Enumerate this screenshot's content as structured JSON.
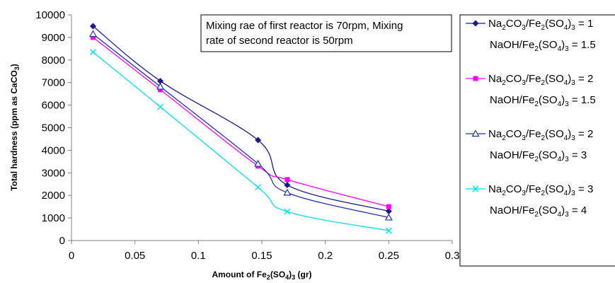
{
  "chart_data": {
    "type": "line",
    "xlabel": {
      "pre": "Amount of Fe",
      "sub1": "2",
      "mid": "(SO",
      "sub2": "4",
      "post": ")",
      "sub3": "3",
      "end": " (gr)"
    },
    "ylabel": {
      "pre": "Total hardness (ppm as CaCO",
      "sub": "3",
      "post": ")"
    },
    "xlim": [
      0,
      0.3
    ],
    "ylim": [
      0,
      10000
    ],
    "xticks": [
      "0",
      "0.05",
      "0.1",
      "0.15",
      "0.2",
      "0.25",
      "0.3"
    ],
    "yticks": [
      "0",
      "1000",
      "2000",
      "3000",
      "4000",
      "5000",
      "6000",
      "7000",
      "8000",
      "9000",
      "10000"
    ],
    "annotation": {
      "line1": "Mixing rae of first reactor is 70rpm, Mixing",
      "line2": "rate of second reactor is 50rpm"
    },
    "legend_position": "right",
    "series": [
      {
        "color": "#1a1a8c",
        "marker": "diamond",
        "legend_line1": {
          "a": "Na",
          "b": "2",
          "c": "CO",
          "d": "3",
          "e": "/Fe",
          "f": "2",
          "g": "(SO",
          "h": "4",
          "i": ")",
          "j": "3",
          "k": " = 1"
        },
        "legend_line2": {
          "a": "NaOH/Fe",
          "b": "2",
          "c": "(SO",
          "d": "4",
          "e": ")",
          "f": "3",
          "g": " = 1.5"
        },
        "x": [
          0.017,
          0.07,
          0.147,
          0.17,
          0.25
        ],
        "y": [
          9500,
          7070,
          4450,
          2460,
          1300
        ]
      },
      {
        "color": "#ff00ff",
        "marker": "square",
        "legend_line1": {
          "a": "Na",
          "b": "2",
          "c": "CO",
          "d": "3",
          "e": "/Fe",
          "f": "2",
          "g": "(SO",
          "h": "4",
          "i": ")",
          "j": "3",
          "k": " = 2"
        },
        "legend_line2": {
          "a": "NaOH/Fe",
          "b": "2",
          "c": "(SO",
          "d": "4",
          "e": ")",
          "f": "3",
          "g": " = 1.5"
        },
        "x": [
          0.017,
          0.07,
          0.147,
          0.17,
          0.25
        ],
        "y": [
          9000,
          6680,
          3300,
          2700,
          1500
        ]
      },
      {
        "color": "#2233aa",
        "marker": "triangle",
        "legend_line1": {
          "a": "Na",
          "b": "2",
          "c": "CO",
          "d": "3",
          "e": "/Fe",
          "f": "2",
          "g": "(SO",
          "h": "4",
          "i": ")",
          "j": "3",
          "k": " = 2"
        },
        "legend_line2": {
          "a": "NaOH/Fe",
          "b": "2",
          "c": "(SO",
          "d": "4",
          "e": ")",
          "f": "3",
          "g": " = 3"
        },
        "x": [
          0.017,
          0.07,
          0.147,
          0.17,
          0.25
        ],
        "y": [
          9150,
          6820,
          3400,
          2120,
          1020
        ]
      },
      {
        "color": "#00e0f0",
        "marker": "x",
        "legend_line1": {
          "a": "Na",
          "b": "2",
          "c": "CO",
          "d": "3",
          "e": "/Fe",
          "f": "2",
          "g": "(SO",
          "h": "4",
          "i": ")",
          "j": "3",
          "k": " = 3"
        },
        "legend_line2": {
          "a": "NaOH/Fe",
          "b": "2",
          "c": "(SO",
          "d": "4",
          "e": ")",
          "f": "3",
          "g": " = 4"
        },
        "x": [
          0.017,
          0.07,
          0.147,
          0.17,
          0.25
        ],
        "y": [
          8350,
          5920,
          2360,
          1280,
          440
        ]
      }
    ]
  }
}
